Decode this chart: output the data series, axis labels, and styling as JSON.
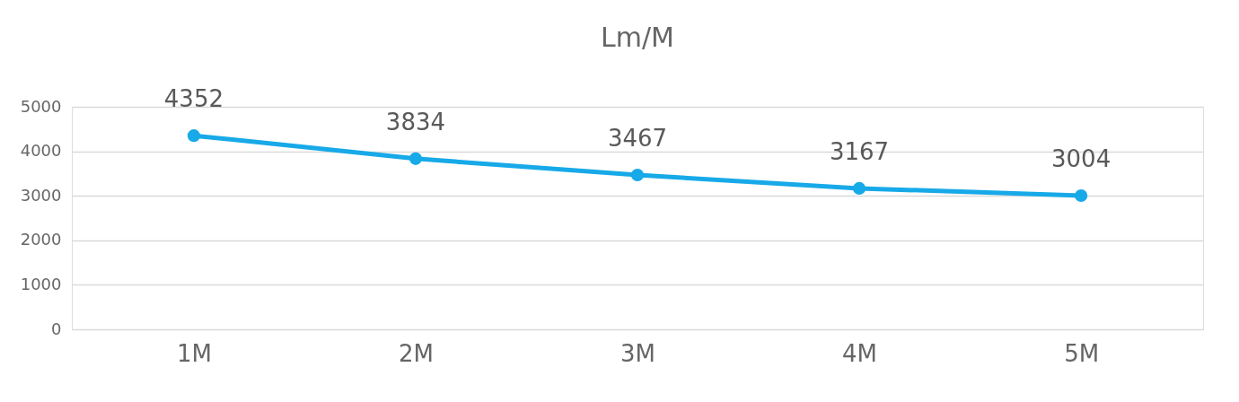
{
  "chart_data": {
    "type": "line",
    "title": "Lm/M",
    "categories": [
      "1M",
      "2M",
      "3M",
      "4M",
      "5M"
    ],
    "series": [
      {
        "color": "#17a9e8",
        "values": [
          4352,
          3834,
          3467,
          3167,
          3004
        ]
      }
    ],
    "ylim": [
      0,
      5000
    ],
    "yticks": [
      0,
      1000,
      2000,
      3000,
      4000,
      5000
    ],
    "grid": "y",
    "data_labels": true,
    "marker": "circle",
    "line_style": "solid"
  }
}
